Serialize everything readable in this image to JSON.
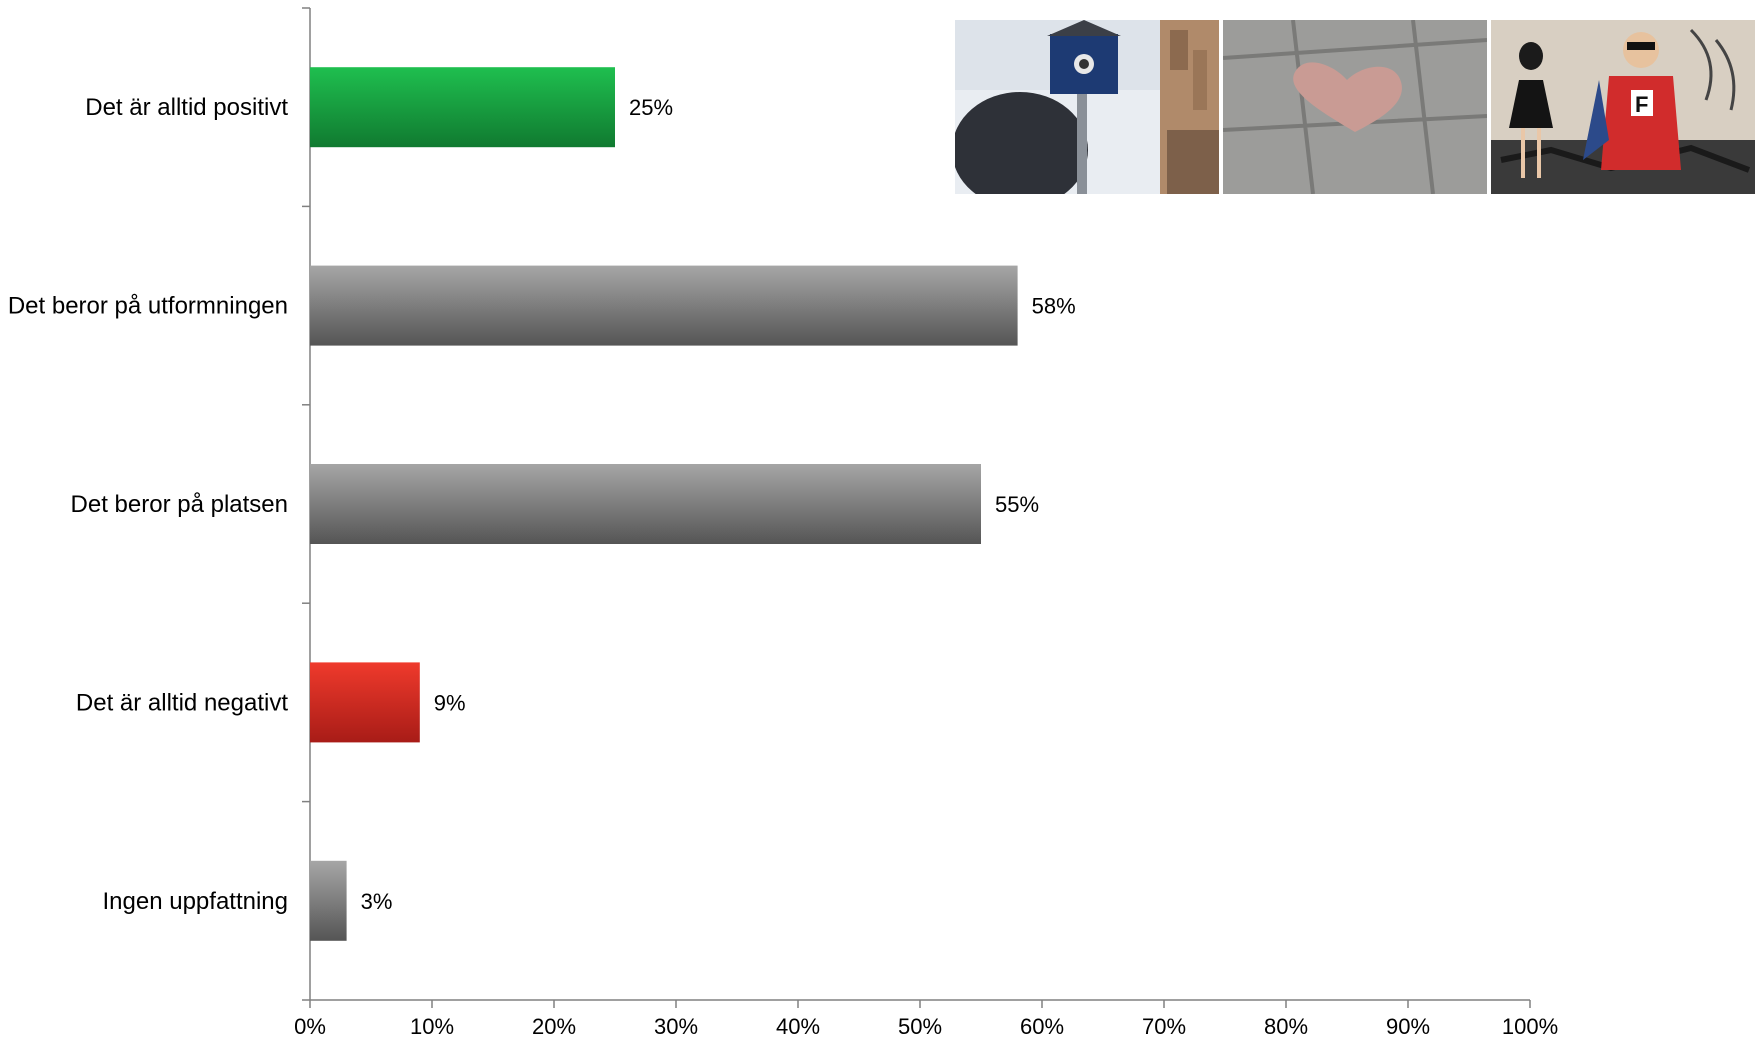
{
  "chart_data": {
    "type": "bar",
    "orientation": "horizontal",
    "categories": [
      "Det är alltid positivt",
      "Det beror på utformningen",
      "Det beror på platsen",
      "Det är alltid negativt",
      "Ingen uppfattning"
    ],
    "values": [
      25,
      58,
      55,
      9,
      3
    ],
    "value_labels": [
      "25%",
      "58%",
      "55%",
      "9%",
      "3%"
    ],
    "bar_colors": [
      "green",
      "gray",
      "gray",
      "red",
      "gray"
    ],
    "xlim": [
      0,
      100
    ],
    "xticks": [
      "0%",
      "10%",
      "20%",
      "30%",
      "40%",
      "50%",
      "60%",
      "70%",
      "80%",
      "90%",
      "100%"
    ],
    "title": "",
    "xlabel": "",
    "ylabel": "",
    "grid": false,
    "legend": "none"
  },
  "colors": {
    "green_top": "#1fbf4f",
    "green_bottom": "#107a30",
    "gray_top": "#a6a6a6",
    "gray_bottom": "#555555",
    "red_top": "#ef3a2c",
    "red_bottom": "#a81c17",
    "axis": "#808080"
  },
  "photos": [
    {
      "icon": "camera-birdhouse-on-sign-photo"
    },
    {
      "icon": "heart-on-pavement-photo"
    },
    {
      "icon": "graffiti-superhero-wall-photo"
    }
  ]
}
